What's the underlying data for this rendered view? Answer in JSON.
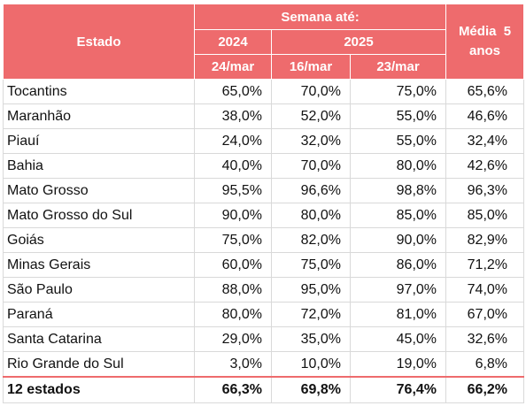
{
  "header": {
    "estado": "Estado",
    "semana": "Semana até:",
    "year_prev": "2024",
    "year_curr": "2025",
    "media_line1": "Média  5",
    "media_line2": "anos",
    "dates": [
      "24/mar",
      "16/mar",
      "23/mar"
    ]
  },
  "rows": [
    {
      "estado": "Tocantins",
      "v1": "65,0%",
      "v2": "70,0%",
      "v3": "75,0%",
      "media": "65,6%"
    },
    {
      "estado": "Maranhão",
      "v1": "38,0%",
      "v2": "52,0%",
      "v3": "55,0%",
      "media": "46,6%"
    },
    {
      "estado": "Piauí",
      "v1": "24,0%",
      "v2": "32,0%",
      "v3": "55,0%",
      "media": "32,4%"
    },
    {
      "estado": "Bahia",
      "v1": "40,0%",
      "v2": "70,0%",
      "v3": "80,0%",
      "media": "42,6%"
    },
    {
      "estado": "Mato Grosso",
      "v1": "95,5%",
      "v2": "96,6%",
      "v3": "98,8%",
      "media": "96,3%"
    },
    {
      "estado": "Mato Grosso do Sul",
      "v1": "90,0%",
      "v2": "80,0%",
      "v3": "85,0%",
      "media": "85,0%"
    },
    {
      "estado": "Goiás",
      "v1": "75,0%",
      "v2": "82,0%",
      "v3": "90,0%",
      "media": "82,9%"
    },
    {
      "estado": "Minas Gerais",
      "v1": "60,0%",
      "v2": "75,0%",
      "v3": "86,0%",
      "media": "71,2%"
    },
    {
      "estado": "São Paulo",
      "v1": "88,0%",
      "v2": "95,0%",
      "v3": "97,0%",
      "media": "74,0%"
    },
    {
      "estado": "Paraná",
      "v1": "80,0%",
      "v2": "72,0%",
      "v3": "81,0%",
      "media": "67,0%"
    },
    {
      "estado": "Santa Catarina",
      "v1": "29,0%",
      "v2": "35,0%",
      "v3": "45,0%",
      "media": "32,6%"
    },
    {
      "estado": "Rio Grande do Sul",
      "v1": "3,0%",
      "v2": "10,0%",
      "v3": "19,0%",
      "media": "6,8%"
    }
  ],
  "total": {
    "estado": "12 estados",
    "v1": "66,3%",
    "v2": "69,8%",
    "v3": "76,4%",
    "media": "66,2%"
  },
  "colors": {
    "header_bg": "#ee6b6d",
    "header_text": "#ffffff"
  }
}
